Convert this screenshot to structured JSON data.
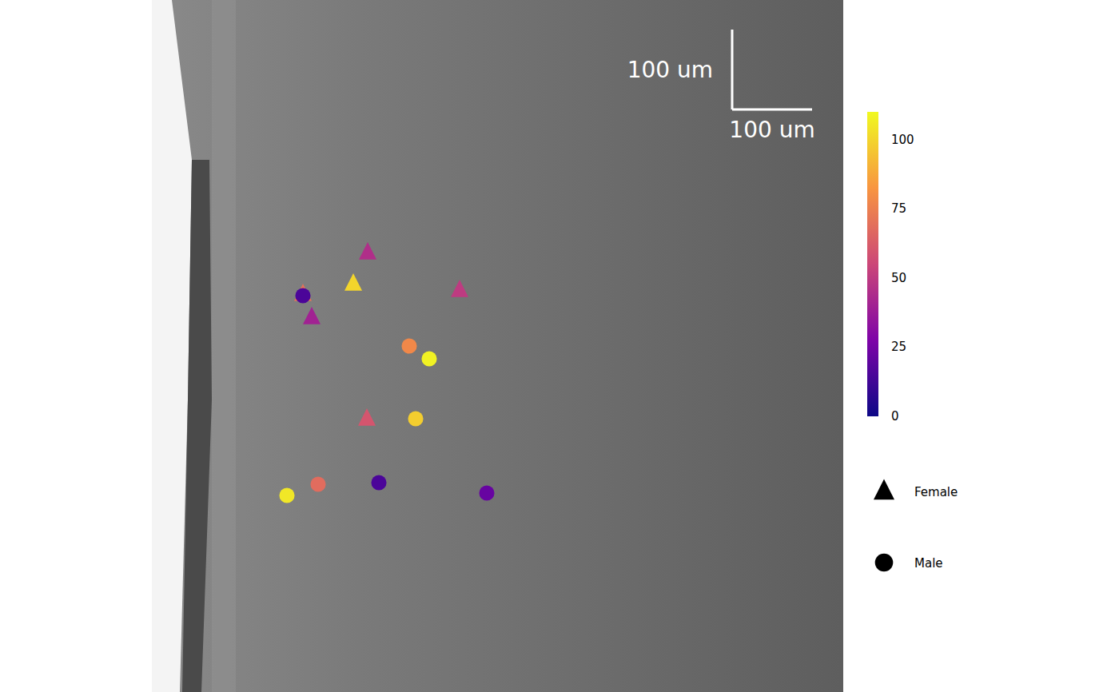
{
  "chart_data": {
    "type": "scatter",
    "xlim": [
      0,
      865
    ],
    "ylim": [
      0,
      866
    ],
    "tick_labels": false,
    "legend": "right",
    "series": [
      {
        "name": "Female",
        "marker": "triangle",
        "color": "#000000",
        "x": [
          270,
          252,
          189,
          200,
          385,
          269
        ],
        "y": [
          550,
          511,
          498,
          469,
          503,
          342
        ],
        "values": [
          45,
          100,
          70,
          40,
          50,
          60
        ]
      },
      {
        "name": "Male",
        "marker": "circle",
        "color": "#000000",
        "x": [
          189,
          322,
          347,
          330,
          208,
          169,
          284,
          419
        ],
        "y": [
          496,
          433,
          417,
          342,
          260,
          246,
          262,
          249
        ],
        "values": [
          15,
          78,
          108,
          98,
          68,
          105,
          15,
          22
        ]
      }
    ],
    "colorbar": {
      "range": [
        0,
        110
      ],
      "ticks": [
        0,
        25,
        50,
        75,
        100
      ]
    },
    "scale_bar": {
      "length": 100,
      "label_x": "100 um",
      "label_y": "100 um"
    }
  }
}
